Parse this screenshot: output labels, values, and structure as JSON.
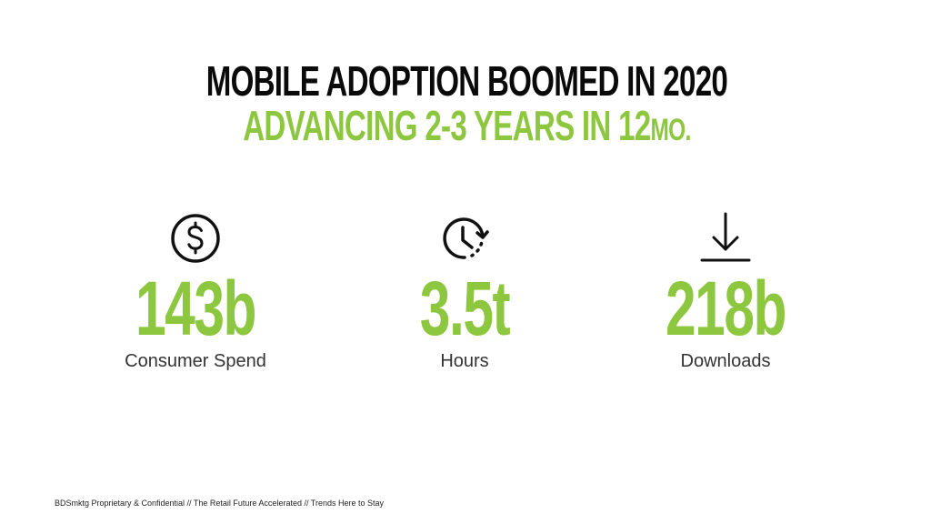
{
  "headline": {
    "line1": "MOBILE ADOPTION BOOMED IN 2020",
    "line2_main": "ADVANCING 2-3 YEARS IN 12",
    "line2_suffix": "MO."
  },
  "colors": {
    "accent": "#8dc63f",
    "heading": "#0a0a0a",
    "label": "#333333"
  },
  "stats": [
    {
      "icon": "dollar-circle-icon",
      "value": "143b",
      "label": "Consumer Spend"
    },
    {
      "icon": "clock-icon",
      "value": "3.5t",
      "label": "Hours"
    },
    {
      "icon": "download-icon",
      "value": "218b",
      "label": "Downloads"
    }
  ],
  "footer": {
    "text": "BDSmktg Proprietary & Confidential // The Retail Future Accelerated  // Trends Here to Stay"
  }
}
